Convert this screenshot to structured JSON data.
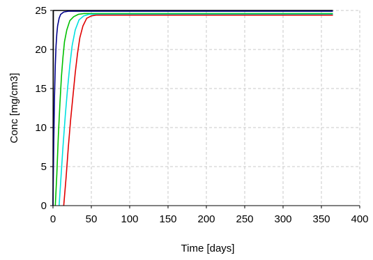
{
  "chart_data": {
    "type": "line",
    "xlabel": "Time [days]",
    "ylabel": "Conc [mg/cm3]",
    "xlim": [
      0,
      400
    ],
    "ylim": [
      0,
      25
    ],
    "xticks": [
      0,
      50,
      100,
      150,
      200,
      250,
      300,
      350,
      400
    ],
    "yticks": [
      0,
      5,
      10,
      15,
      20,
      25
    ],
    "grid": true,
    "series": [
      {
        "color": "#000000",
        "x": [
          0,
          0.5,
          1,
          1.5,
          2,
          3,
          5,
          8,
          12,
          20,
          365
        ],
        "y": [
          0,
          25,
          25,
          25,
          25,
          25,
          25,
          25,
          25,
          25,
          25
        ]
      },
      {
        "color": "#00008b",
        "x": [
          0,
          1,
          2,
          3,
          4,
          5,
          6,
          8,
          10,
          14,
          20,
          365
        ],
        "y": [
          0,
          8,
          14,
          18,
          20.5,
          22,
          23,
          24,
          24.5,
          24.8,
          24.9,
          24.9
        ]
      },
      {
        "color": "#00c000",
        "x": [
          3,
          5,
          7,
          9,
          11,
          13,
          15,
          18,
          22,
          27,
          33,
          40,
          365
        ],
        "y": [
          0,
          4,
          9,
          13,
          16.5,
          19,
          21,
          22.5,
          23.7,
          24.2,
          24.5,
          24.6,
          24.6
        ]
      },
      {
        "color": "#00e0e0",
        "x": [
          8,
          10,
          13,
          16,
          19,
          22,
          25,
          29,
          34,
          40,
          47,
          365
        ],
        "y": [
          0,
          3,
          7.5,
          11.5,
          15,
          18,
          20.5,
          22.5,
          23.8,
          24.3,
          24.5,
          24.5
        ]
      },
      {
        "color": "#e00000",
        "x": [
          14,
          17,
          20,
          23,
          26,
          29,
          32,
          35,
          39,
          44,
          50,
          56,
          365
        ],
        "y": [
          0,
          3.5,
          7.5,
          11,
          14,
          17,
          19.5,
          21.5,
          23,
          24,
          24.3,
          24.4,
          24.4
        ]
      }
    ]
  }
}
